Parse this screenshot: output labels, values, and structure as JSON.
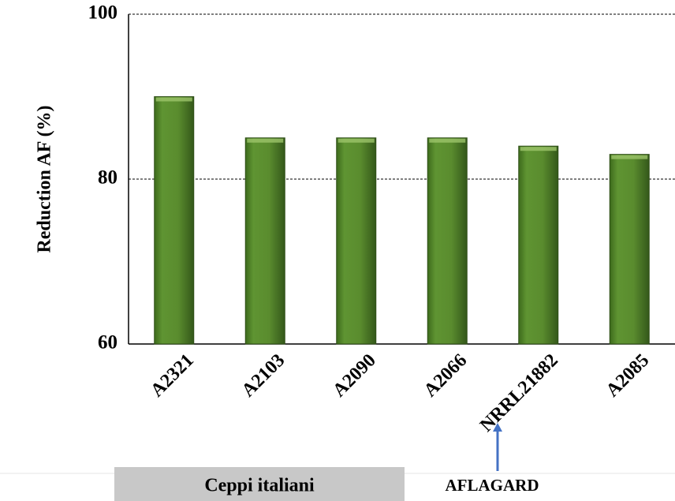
{
  "chart_data": {
    "type": "bar",
    "y_label": "Reduction AF (%)",
    "categories": [
      "A2321",
      "A2103",
      "A2090",
      "A2066",
      "NRRL21882",
      "A2085"
    ],
    "values": [
      90,
      85,
      85,
      85,
      84,
      83
    ],
    "color": "#5a8a2e",
    "ylim": [
      60,
      100
    ],
    "yticks": [
      60,
      80,
      100
    ],
    "grid": true,
    "annotations": [
      "Ceppi italiani",
      "AFLAGARD"
    ]
  }
}
